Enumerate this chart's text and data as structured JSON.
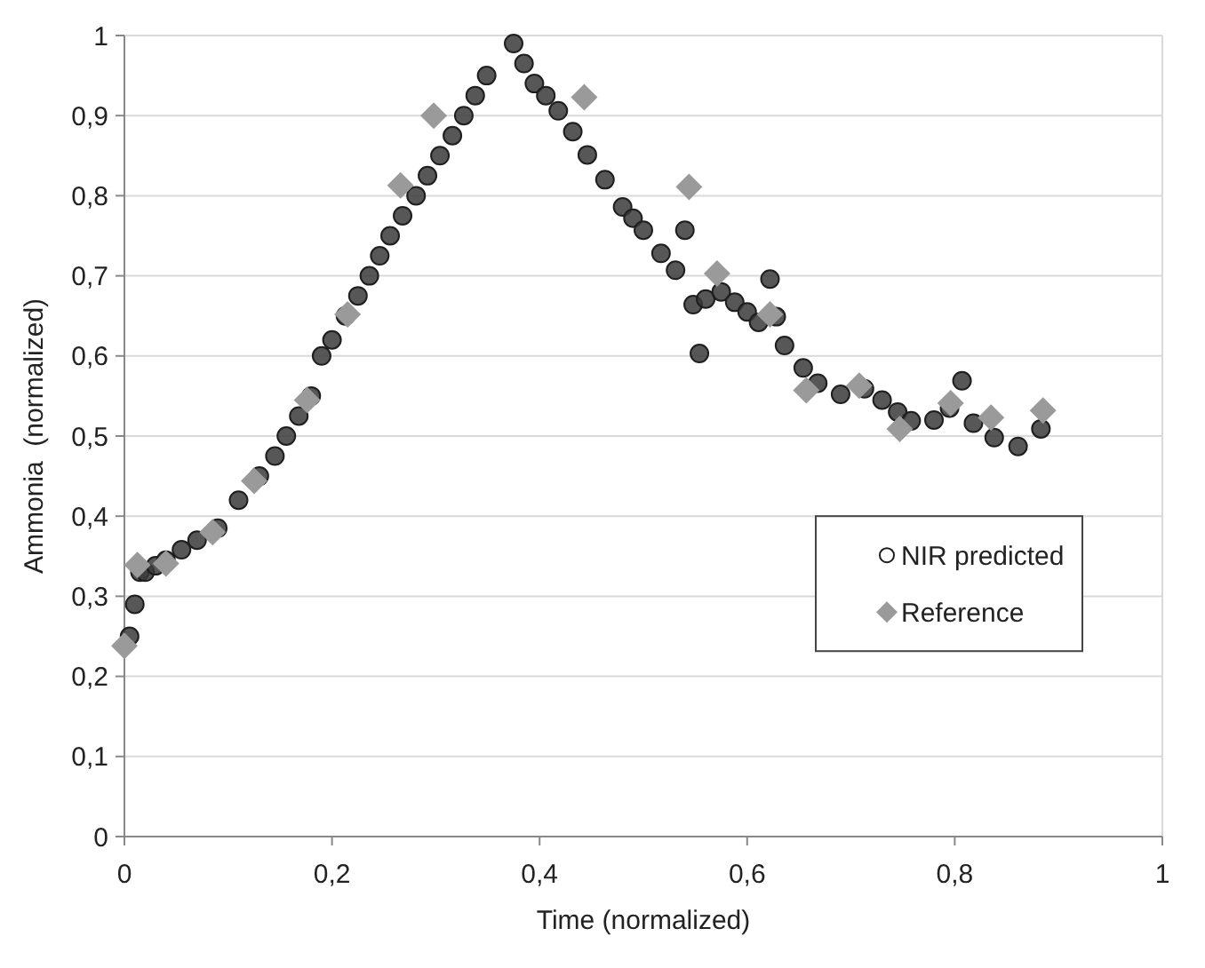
{
  "chart_data": {
    "type": "scatter",
    "xlabel": "Time (normalized)",
    "ylabel": "Ammonia  (normalized)",
    "xlim": [
      0,
      1
    ],
    "ylim": [
      0,
      1
    ],
    "xticks": [
      {
        "value": 0,
        "label": "0"
      },
      {
        "value": 0.2,
        "label": "0,2"
      },
      {
        "value": 0.4,
        "label": "0,4"
      },
      {
        "value": 0.6,
        "label": "0,6"
      },
      {
        "value": 0.8,
        "label": "0,8"
      },
      {
        "value": 1,
        "label": "1"
      }
    ],
    "yticks": [
      {
        "value": 0,
        "label": "0"
      },
      {
        "value": 0.1,
        "label": "0,1"
      },
      {
        "value": 0.2,
        "label": "0,2"
      },
      {
        "value": 0.3,
        "label": "0,3"
      },
      {
        "value": 0.4,
        "label": "0,4"
      },
      {
        "value": 0.5,
        "label": "0,5"
      },
      {
        "value": 0.6,
        "label": "0,6"
      },
      {
        "value": 0.7,
        "label": "0,7"
      },
      {
        "value": 0.8,
        "label": "0,8"
      },
      {
        "value": 0.9,
        "label": "0,9"
      },
      {
        "value": 1,
        "label": "1"
      }
    ],
    "grid": "y",
    "legend": "right",
    "series": [
      {
        "name": "NIR predicted",
        "color": "#3a3a3a",
        "marker": "circle",
        "x": [
          0.005,
          0.01,
          0.015,
          0.02,
          0.03,
          0.04,
          0.055,
          0.07,
          0.09,
          0.11,
          0.13,
          0.145,
          0.156,
          0.168,
          0.18,
          0.19,
          0.2,
          0.213,
          0.225,
          0.236,
          0.246,
          0.256,
          0.268,
          0.281,
          0.292,
          0.304,
          0.316,
          0.327,
          0.338,
          0.349,
          0.375,
          0.385,
          0.395,
          0.406,
          0.418,
          0.432,
          0.446,
          0.463,
          0.48,
          0.49,
          0.5,
          0.517,
          0.531,
          0.54,
          0.548,
          0.554,
          0.56,
          0.575,
          0.588,
          0.6,
          0.611,
          0.622,
          0.628,
          0.636,
          0.654,
          0.668,
          0.69,
          0.713,
          0.73,
          0.745,
          0.758,
          0.78,
          0.795,
          0.807,
          0.818,
          0.838,
          0.861,
          0.883
        ],
        "values": [
          0.25,
          0.29,
          0.33,
          0.33,
          0.338,
          0.345,
          0.358,
          0.37,
          0.385,
          0.42,
          0.45,
          0.475,
          0.5,
          0.525,
          0.55,
          0.6,
          0.62,
          0.65,
          0.675,
          0.7,
          0.725,
          0.75,
          0.775,
          0.8,
          0.825,
          0.85,
          0.875,
          0.9,
          0.925,
          0.95,
          0.99,
          0.965,
          0.94,
          0.925,
          0.906,
          0.88,
          0.851,
          0.82,
          0.786,
          0.772,
          0.757,
          0.728,
          0.707,
          0.757,
          0.664,
          0.603,
          0.671,
          0.68,
          0.667,
          0.655,
          0.642,
          0.696,
          0.649,
          0.613,
          0.585,
          0.566,
          0.552,
          0.559,
          0.545,
          0.53,
          0.519,
          0.52,
          0.535,
          0.569,
          0.516,
          0.498,
          0.487,
          0.509
        ]
      },
      {
        "name": "Reference",
        "color": "#9a9a9a",
        "marker": "diamond",
        "x": [
          0,
          0.0125,
          0.04,
          0.085,
          0.125,
          0.176,
          0.215,
          0.266,
          0.298,
          0.443,
          0.544,
          0.571,
          0.622,
          0.657,
          0.708,
          0.747,
          0.796,
          0.835,
          0.885
        ],
        "values": [
          0.238,
          0.339,
          0.341,
          0.38,
          0.444,
          0.545,
          0.652,
          0.813,
          0.9,
          0.923,
          0.811,
          0.703,
          0.652,
          0.557,
          0.563,
          0.509,
          0.541,
          0.523,
          0.532
        ]
      }
    ]
  }
}
